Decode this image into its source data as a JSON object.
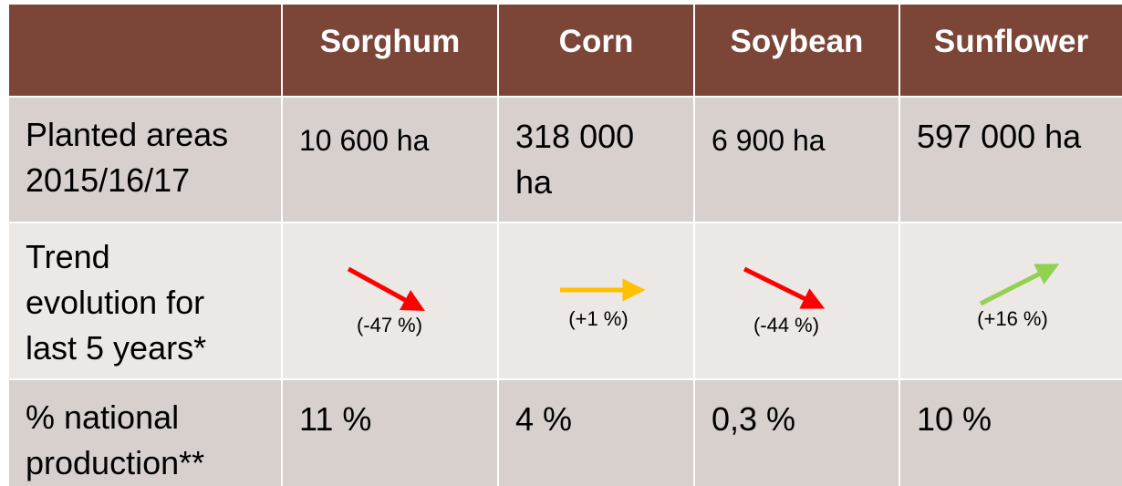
{
  "table": {
    "header": [
      "Sorghum",
      "Corn",
      "Soybean",
      "Sunflower"
    ],
    "rows": [
      {
        "label": "Planted areas 2015/16/17",
        "cells": [
          "10 600 ha",
          "318 000 ha",
          "6 900 ha",
          "597 000 ha"
        ]
      },
      {
        "label": "Trend\nevolution for\nlast  5 years*",
        "cells": [
          "(-47 %)",
          "(+1 %)",
          "(-44 %)",
          "(+16 %)"
        ]
      },
      {
        "label": "% national production**",
        "cells": [
          "11 %",
          "4 %",
          "0,3 %",
          "10 %"
        ]
      }
    ]
  }
}
